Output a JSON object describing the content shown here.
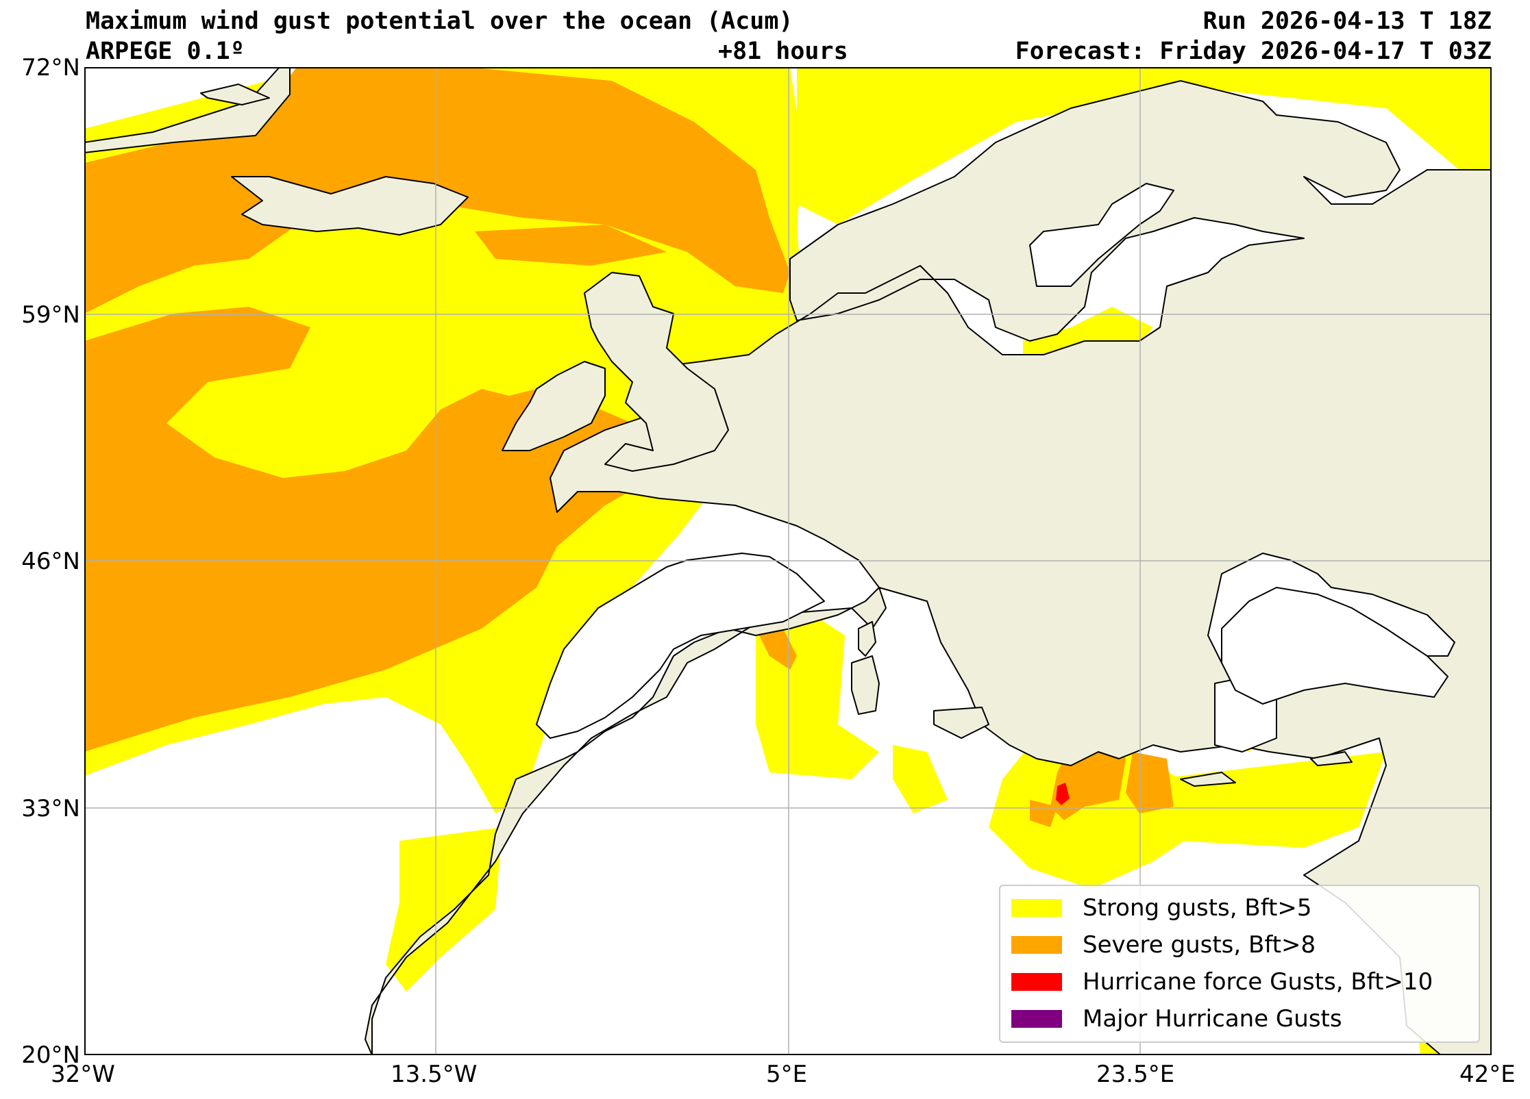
{
  "header": {
    "title": "Maximum wind gust potential over the ocean (Acum)",
    "model": "ARPEGE 0.1º",
    "lead": "+81 hours",
    "run": "Run 2026-04-13 T 18Z",
    "forecast": "Forecast: Friday 2026-04-17 T 03Z"
  },
  "axes": {
    "lat_labels": [
      "72°N",
      "59°N",
      "46°N",
      "33°N",
      "20°N"
    ],
    "lon_labels": [
      "32°W",
      "13.5°W",
      "5°E",
      "23.5°E",
      "42°E"
    ],
    "lat_range": [
      20,
      72
    ],
    "lon_range": [
      -32,
      42
    ],
    "grid": true
  },
  "legend": {
    "placement": "bottom-right",
    "items": [
      {
        "label": "Strong gusts, Bft>5",
        "color": "#ffff00"
      },
      {
        "label": "Severe gusts, Bft>8",
        "color": "#ffa500"
      },
      {
        "label": "Hurricane force Gusts, Bft>10",
        "color": "#ff0000"
      },
      {
        "label": "Major Hurricane Gusts",
        "color": "#800080"
      }
    ]
  },
  "colors": {
    "land": "#efefdc",
    "sea": "#ffffff",
    "coast": "#000000",
    "grid": "#b0b0b0"
  }
}
